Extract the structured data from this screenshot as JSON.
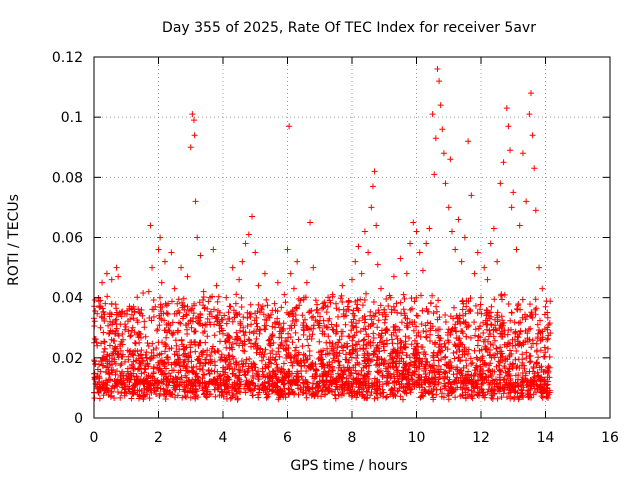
{
  "chart_data": {
    "type": "scatter",
    "title": "Day 355 of 2025, Rate Of TEC Index for receiver 5avr",
    "xlabel": "GPS time / hours",
    "ylabel": "ROTI / TECUs",
    "xlim": [
      0,
      16
    ],
    "ylim": [
      0,
      0.12
    ],
    "xticks": [
      "0",
      "2",
      "4",
      "6",
      "8",
      "10",
      "12",
      "14",
      "16"
    ],
    "yticks": [
      "0",
      "0.02",
      "0.04",
      "0.06",
      "0.08",
      "0.1",
      "0.12"
    ],
    "grid": true,
    "marker": "+",
    "series": [
      {
        "name": "ROTI",
        "color": "#ff0000",
        "points": [
          [
            0.05,
            0.018
          ],
          [
            0.1,
            0.024
          ],
          [
            0.15,
            0.012
          ],
          [
            0.2,
            0.03
          ],
          [
            0.25,
            0.045
          ],
          [
            0.3,
            0.02
          ],
          [
            0.35,
            0.038
          ],
          [
            0.4,
            0.048
          ],
          [
            0.45,
            0.016
          ],
          [
            0.5,
            0.032
          ],
          [
            0.55,
            0.046
          ],
          [
            0.6,
            0.022
          ],
          [
            0.65,
            0.028
          ],
          [
            0.7,
            0.05
          ],
          [
            0.75,
            0.047
          ],
          [
            0.8,
            0.035
          ],
          [
            0.85,
            0.018
          ],
          [
            0.9,
            0.026
          ],
          [
            1.0,
            0.014
          ],
          [
            1.1,
            0.022
          ],
          [
            1.2,
            0.03
          ],
          [
            1.3,
            0.019
          ],
          [
            1.4,
            0.025
          ],
          [
            1.5,
            0.034
          ],
          [
            1.6,
            0.021
          ],
          [
            1.7,
            0.042
          ],
          [
            1.75,
            0.064
          ],
          [
            1.8,
            0.05
          ],
          [
            1.9,
            0.037
          ],
          [
            2.0,
            0.056
          ],
          [
            2.05,
            0.06
          ],
          [
            2.1,
            0.045
          ],
          [
            2.2,
            0.052
          ],
          [
            2.3,
            0.038
          ],
          [
            2.4,
            0.055
          ],
          [
            2.5,
            0.043
          ],
          [
            2.6,
            0.029
          ],
          [
            2.7,
            0.05
          ],
          [
            2.8,
            0.036
          ],
          [
            2.9,
            0.047
          ],
          [
            3.0,
            0.09
          ],
          [
            3.05,
            0.101
          ],
          [
            3.1,
            0.099
          ],
          [
            3.12,
            0.094
          ],
          [
            3.15,
            0.072
          ],
          [
            3.2,
            0.06
          ],
          [
            3.3,
            0.054
          ],
          [
            3.4,
            0.042
          ],
          [
            3.5,
            0.031
          ],
          [
            3.6,
            0.04
          ],
          [
            3.7,
            0.056
          ],
          [
            3.8,
            0.044
          ],
          [
            3.9,
            0.035
          ],
          [
            4.0,
            0.028
          ],
          [
            4.1,
            0.04
          ],
          [
            4.2,
            0.033
          ],
          [
            4.3,
            0.05
          ],
          [
            4.4,
            0.038
          ],
          [
            4.5,
            0.046
          ],
          [
            4.6,
            0.052
          ],
          [
            4.7,
            0.058
          ],
          [
            4.8,
            0.061
          ],
          [
            4.9,
            0.067
          ],
          [
            5.0,
            0.055
          ],
          [
            5.1,
            0.044
          ],
          [
            5.2,
            0.036
          ],
          [
            5.3,
            0.048
          ],
          [
            5.4,
            0.034
          ],
          [
            5.5,
            0.027
          ],
          [
            5.6,
            0.038
          ],
          [
            5.7,
            0.045
          ],
          [
            5.8,
            0.03
          ],
          [
            5.9,
            0.041
          ],
          [
            6.0,
            0.056
          ],
          [
            6.05,
            0.097
          ],
          [
            6.1,
            0.048
          ],
          [
            6.2,
            0.043
          ],
          [
            6.3,
            0.052
          ],
          [
            6.4,
            0.039
          ],
          [
            6.5,
            0.03
          ],
          [
            6.6,
            0.045
          ],
          [
            6.7,
            0.065
          ],
          [
            6.8,
            0.05
          ],
          [
            6.9,
            0.036
          ],
          [
            7.0,
            0.03
          ],
          [
            7.1,
            0.038
          ],
          [
            7.2,
            0.025
          ],
          [
            7.3,
            0.033
          ],
          [
            7.4,
            0.041
          ],
          [
            7.5,
            0.028
          ],
          [
            7.6,
            0.036
          ],
          [
            7.7,
            0.044
          ],
          [
            7.8,
            0.031
          ],
          [
            7.9,
            0.039
          ],
          [
            8.0,
            0.046
          ],
          [
            8.1,
            0.052
          ],
          [
            8.2,
            0.057
          ],
          [
            8.3,
            0.048
          ],
          [
            8.4,
            0.062
          ],
          [
            8.5,
            0.055
          ],
          [
            8.6,
            0.07
          ],
          [
            8.65,
            0.077
          ],
          [
            8.7,
            0.082
          ],
          [
            8.75,
            0.064
          ],
          [
            8.8,
            0.051
          ],
          [
            8.9,
            0.043
          ],
          [
            9.0,
            0.036
          ],
          [
            9.1,
            0.029
          ],
          [
            9.2,
            0.04
          ],
          [
            9.3,
            0.047
          ],
          [
            9.4,
            0.035
          ],
          [
            9.5,
            0.053
          ],
          [
            9.6,
            0.041
          ],
          [
            9.7,
            0.048
          ],
          [
            9.8,
            0.058
          ],
          [
            9.9,
            0.065
          ],
          [
            10.0,
            0.062
          ],
          [
            10.1,
            0.055
          ],
          [
            10.2,
            0.049
          ],
          [
            10.3,
            0.058
          ],
          [
            10.4,
            0.063
          ],
          [
            10.5,
            0.101
          ],
          [
            10.55,
            0.081
          ],
          [
            10.6,
            0.093
          ],
          [
            10.65,
            0.116
          ],
          [
            10.7,
            0.112
          ],
          [
            10.75,
            0.104
          ],
          [
            10.8,
            0.096
          ],
          [
            10.85,
            0.088
          ],
          [
            10.9,
            0.078
          ],
          [
            11.0,
            0.07
          ],
          [
            11.05,
            0.086
          ],
          [
            11.1,
            0.062
          ],
          [
            11.2,
            0.056
          ],
          [
            11.3,
            0.066
          ],
          [
            11.4,
            0.052
          ],
          [
            11.5,
            0.06
          ],
          [
            11.6,
            0.092
          ],
          [
            11.7,
            0.074
          ],
          [
            11.8,
            0.048
          ],
          [
            11.9,
            0.055
          ],
          [
            12.0,
            0.04
          ],
          [
            12.1,
            0.05
          ],
          [
            12.2,
            0.046
          ],
          [
            12.3,
            0.058
          ],
          [
            12.4,
            0.063
          ],
          [
            12.5,
            0.052
          ],
          [
            12.6,
            0.078
          ],
          [
            12.7,
            0.085
          ],
          [
            12.8,
            0.103
          ],
          [
            12.85,
            0.097
          ],
          [
            12.9,
            0.089
          ],
          [
            12.95,
            0.07
          ],
          [
            13.0,
            0.075
          ],
          [
            13.1,
            0.056
          ],
          [
            13.2,
            0.064
          ],
          [
            13.3,
            0.088
          ],
          [
            13.4,
            0.072
          ],
          [
            13.5,
            0.101
          ],
          [
            13.55,
            0.108
          ],
          [
            13.6,
            0.094
          ],
          [
            13.65,
            0.083
          ],
          [
            13.7,
            0.069
          ],
          [
            13.8,
            0.05
          ],
          [
            13.9,
            0.043
          ],
          [
            14.0,
            0.037
          ],
          [
            14.05,
            0.026
          ],
          [
            14.1,
            0.031
          ]
        ]
      }
    ]
  }
}
